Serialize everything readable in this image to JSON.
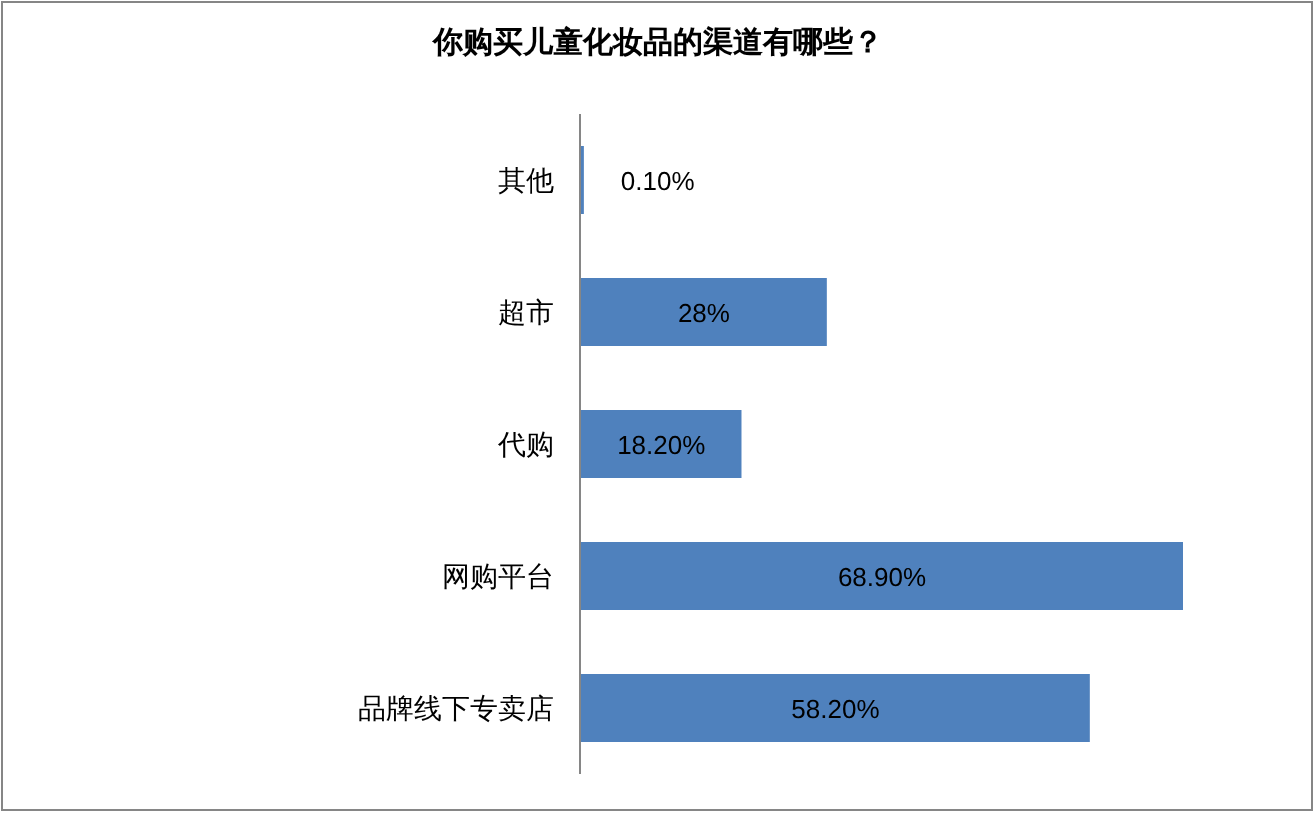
{
  "chart_data": {
    "type": "bar",
    "orientation": "horizontal",
    "title": "你购买儿童化妆品的渠道有哪些？",
    "categories": [
      "其他",
      "超市",
      "代购",
      "网购平台",
      "品牌线下专卖店"
    ],
    "values": [
      0.1,
      28,
      18.2,
      68.9,
      58.2
    ],
    "value_labels": [
      "0.10%",
      "28%",
      "18.20%",
      "68.90%",
      "58.20%"
    ],
    "color": "#4f81bd",
    "tick_labels": "y"
  }
}
